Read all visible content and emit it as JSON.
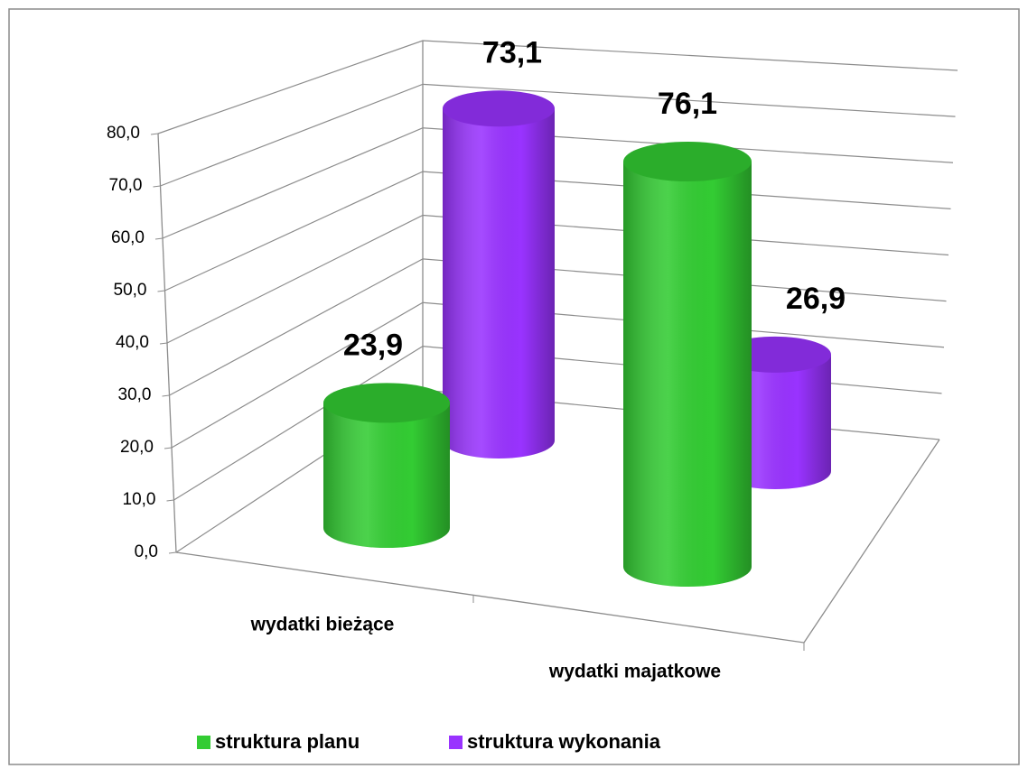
{
  "chart_data": {
    "type": "bar3d",
    "categories": [
      "wydatki bieżące",
      "wydatki majatkowe"
    ],
    "series": [
      {
        "name": "struktura planu",
        "color": "#33cc33",
        "values": [
          23.9,
          76.1
        ],
        "value_labels": [
          "23,9",
          "76,1"
        ]
      },
      {
        "name": "struktura wykonania",
        "color": "#9933ff",
        "values": [
          73.1,
          26.9
        ],
        "value_labels": [
          "73,1",
          "26,9"
        ]
      }
    ],
    "ylim": [
      0,
      80
    ],
    "yticks": [
      {
        "value": 0,
        "label": "0,0"
      },
      {
        "value": 10,
        "label": "10,0"
      },
      {
        "value": 20,
        "label": "20,0"
      },
      {
        "value": 30,
        "label": "30,0"
      },
      {
        "value": 40,
        "label": "40,0"
      },
      {
        "value": 50,
        "label": "50,0"
      },
      {
        "value": 60,
        "label": "60,0"
      },
      {
        "value": 70,
        "label": "70,0"
      },
      {
        "value": 80,
        "label": "80,0"
      }
    ],
    "grid": true,
    "legend": "bottom"
  }
}
